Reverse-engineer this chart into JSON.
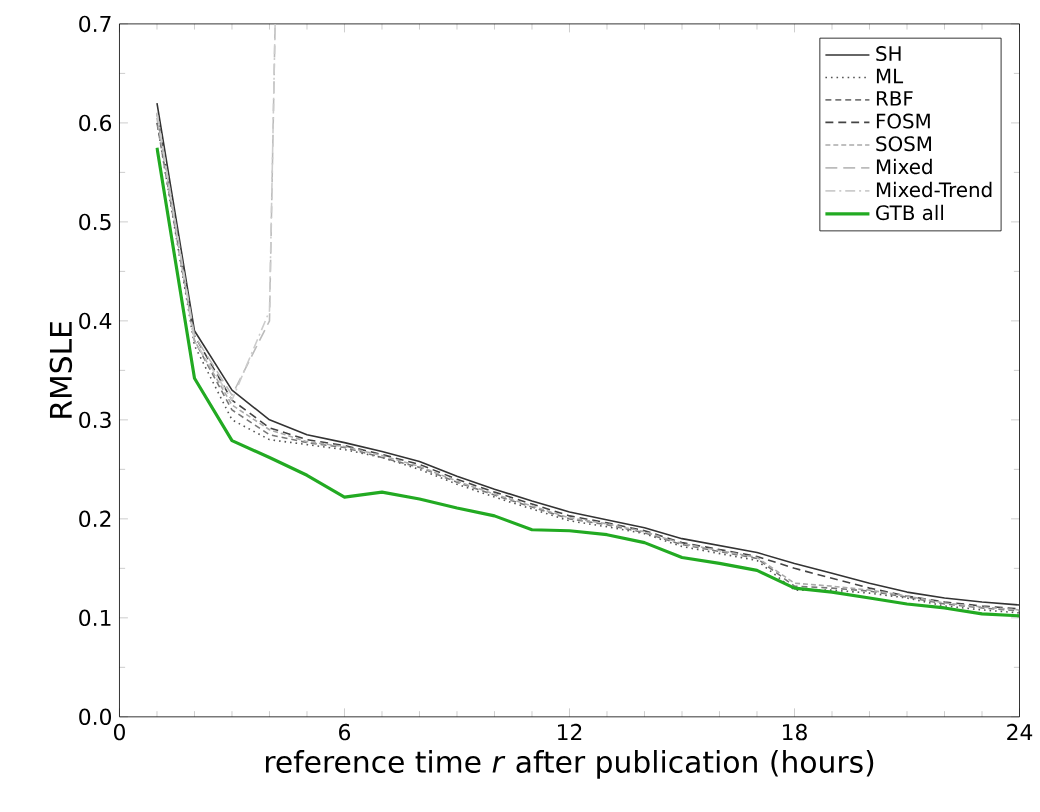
{
  "chart_data": {
    "type": "line",
    "xlabel": "reference time *r* after publication (hours)",
    "ylabel": "RMSLE",
    "x": [
      1,
      2,
      3,
      4,
      5,
      6,
      7,
      8,
      9,
      10,
      11,
      12,
      13,
      14,
      15,
      16,
      17,
      18,
      19,
      20,
      21,
      22,
      23,
      24
    ],
    "xlim": [
      0,
      24
    ],
    "xticks": [
      0,
      6,
      12,
      18,
      24
    ],
    "ylim": [
      0,
      0.7
    ],
    "yticks": [
      {
        "value": 0,
        "label": "0.0"
      },
      0.1,
      0.2,
      0.3,
      0.4,
      0.5,
      0.6,
      0.7
    ],
    "grid": false,
    "legend": "top right",
    "marker": "none",
    "series": [
      {
        "name": "SH",
        "color": "#333333",
        "line_style": "solid",
        "values": [
          0.62,
          0.39,
          0.33,
          0.3,
          0.285,
          0.277,
          0.268,
          0.258,
          0.243,
          0.23,
          0.218,
          0.207,
          0.199,
          0.191,
          0.18,
          0.173,
          0.166,
          0.155,
          0.145,
          0.135,
          0.126,
          0.12,
          0.116,
          0.113
        ]
      },
      {
        "name": "ML",
        "color": "#555555",
        "line_style": "dotted",
        "values": [
          0.6,
          0.375,
          0.3,
          0.28,
          0.275,
          0.27,
          0.262,
          0.25,
          0.235,
          0.222,
          0.21,
          0.198,
          0.192,
          0.185,
          0.172,
          0.165,
          0.158,
          0.128,
          0.128,
          0.125,
          0.12,
          0.112,
          0.108,
          0.105
        ]
      },
      {
        "name": "RBF",
        "color": "#777777",
        "line_style": "dashed",
        "values": [
          0.6,
          0.38,
          0.31,
          0.285,
          0.277,
          0.272,
          0.262,
          0.252,
          0.237,
          0.224,
          0.212,
          0.2,
          0.194,
          0.186,
          0.174,
          0.167,
          0.16,
          0.132,
          0.13,
          0.127,
          0.121,
          0.114,
          0.11,
          0.107
        ]
      },
      {
        "name": "FOSM",
        "color": "#444444",
        "line_style": "dashed",
        "values": [
          0.61,
          0.385,
          0.32,
          0.292,
          0.28,
          0.274,
          0.265,
          0.255,
          0.24,
          0.227,
          0.215,
          0.203,
          0.196,
          0.188,
          0.176,
          0.169,
          0.162,
          0.15,
          0.14,
          0.13,
          0.122,
          0.116,
          0.112,
          0.109
        ]
      },
      {
        "name": "SOSM",
        "color": "#aaaaaa",
        "line_style": "dashed",
        "values": [
          0.605,
          0.38,
          0.315,
          0.29,
          0.278,
          0.273,
          0.264,
          0.253,
          0.238,
          0.225,
          0.213,
          0.201,
          0.195,
          0.187,
          0.175,
          0.168,
          0.161,
          0.135,
          0.132,
          0.128,
          0.122,
          0.115,
          0.111,
          0.108
        ]
      },
      {
        "name": "Mixed",
        "color": "#bbbbbb",
        "line_style": "dashed",
        "x": [
          1,
          2,
          3,
          4,
          4.15
        ],
        "values": [
          0.61,
          0.385,
          0.325,
          0.4,
          0.7
        ]
      },
      {
        "name": "Mixed-Trend",
        "color": "#cccccc",
        "line_style": "dashed",
        "x": [
          1,
          2,
          3,
          4,
          4.15
        ],
        "values": [
          0.61,
          0.38,
          0.32,
          0.41,
          0.7
        ]
      },
      {
        "name": "GTB all",
        "color": "#22aa22",
        "line_style": "solid",
        "values": [
          0.575,
          0.342,
          0.279,
          0.262,
          0.244,
          0.222,
          0.227,
          0.22,
          0.211,
          0.203,
          0.189,
          0.188,
          0.184,
          0.176,
          0.161,
          0.155,
          0.148,
          0.13,
          0.126,
          0.12,
          0.114,
          0.11,
          0.104,
          0.102
        ]
      }
    ]
  }
}
